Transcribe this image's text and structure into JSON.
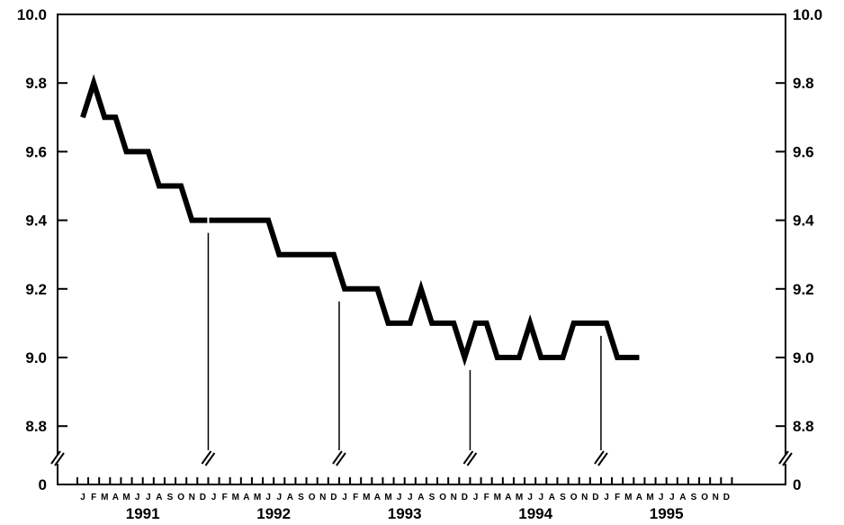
{
  "chart_data": {
    "type": "line",
    "title": "",
    "xlabel": "",
    "ylabel": "",
    "ylim": [
      8.7,
      10.0
    ],
    "y_axis_break": true,
    "y_ticks": [
      {
        "value": 10.0,
        "label": "10.0"
      },
      {
        "value": 9.8,
        "label": "9.8"
      },
      {
        "value": 9.6,
        "label": "9.6"
      },
      {
        "value": 9.4,
        "label": "9.4"
      },
      {
        "value": 9.2,
        "label": "9.2"
      },
      {
        "value": 9.0,
        "label": "9.0"
      },
      {
        "value": 8.8,
        "label": "8.8"
      }
    ],
    "y_zero_label": "0",
    "months": [
      "J",
      "F",
      "M",
      "A",
      "M",
      "J",
      "J",
      "A",
      "S",
      "O",
      "N",
      "D"
    ],
    "years": [
      "1991",
      "1992",
      "1993",
      "1994",
      "1995"
    ],
    "year_break_months": [
      12,
      24,
      36,
      48
    ],
    "series": [
      {
        "values": [
          9.7,
          9.8,
          9.7,
          9.7,
          9.6,
          9.6,
          9.6,
          9.5,
          9.5,
          9.5,
          9.4,
          9.4,
          9.4,
          9.4,
          9.4,
          9.4,
          9.4,
          9.4,
          9.3,
          9.3,
          9.3,
          9.3,
          9.3,
          9.3,
          9.2,
          9.2,
          9.2,
          9.2,
          9.1,
          9.1,
          9.1,
          9.2,
          9.1,
          9.1,
          9.1,
          9.0,
          9.1,
          9.1,
          9.0,
          9.0,
          9.0,
          9.1,
          9.0,
          9.0,
          9.0,
          9.1,
          9.1,
          9.1,
          9.1,
          9.0,
          9.0,
          9.0
        ],
        "start_month": 1,
        "start_year": "1991",
        "gap_after_index": 11
      }
    ]
  }
}
